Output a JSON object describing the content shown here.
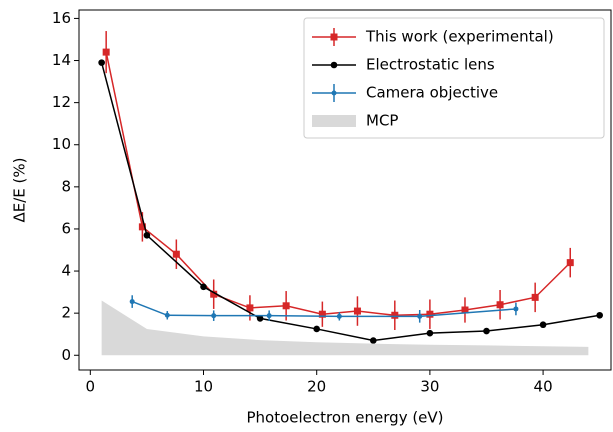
{
  "chart_data": {
    "type": "line",
    "xlabel": "Photoelectron energy (eV)",
    "ylabel": "ΔE/E (%)",
    "xlim": [
      -1,
      46
    ],
    "ylim": [
      -0.7,
      16.4
    ],
    "xticks": [
      0,
      10,
      20,
      30,
      40
    ],
    "yticks": [
      0,
      2,
      4,
      6,
      8,
      10,
      12,
      14,
      16
    ],
    "legend": "upper right",
    "series": [
      {
        "name": "This work (experimental)",
        "color": "#d62728",
        "marker": "square",
        "x": [
          1.4,
          4.6,
          7.6,
          10.9,
          14.1,
          17.3,
          20.5,
          23.6,
          26.9,
          30.0,
          33.1,
          36.2,
          39.3,
          42.4
        ],
        "values": [
          14.4,
          6.1,
          4.8,
          2.9,
          2.25,
          2.35,
          1.95,
          2.1,
          1.9,
          1.95,
          2.15,
          2.4,
          2.75,
          4.4
        ],
        "errors": [
          1.0,
          0.7,
          0.7,
          0.7,
          0.6,
          0.7,
          0.6,
          0.7,
          0.7,
          0.7,
          0.6,
          0.7,
          0.7,
          0.7
        ]
      },
      {
        "name": "Electrostatic lens",
        "color": "#000000",
        "marker": "circle",
        "x": [
          1,
          5,
          10,
          15,
          20,
          25,
          30,
          35,
          40,
          45
        ],
        "values": [
          13.9,
          5.7,
          3.25,
          1.75,
          1.25,
          0.7,
          1.05,
          1.15,
          1.45,
          1.9
        ]
      },
      {
        "name": "Camera objective",
        "color": "#1f77b4",
        "marker": "dot",
        "x": [
          3.7,
          6.8,
          10.9,
          15.8,
          22,
          29.1,
          37.6
        ],
        "values": [
          2.55,
          1.9,
          1.88,
          1.88,
          1.85,
          1.85,
          2.2
        ],
        "errors": [
          0.3,
          0.2,
          0.25,
          0.25,
          0.2,
          0.3,
          0.3
        ]
      },
      {
        "name": "MCP",
        "color": "#d9d9d9",
        "marker": "area",
        "x": [
          1,
          5,
          10,
          15,
          20,
          25,
          30,
          35,
          40,
          44
        ],
        "values": [
          2.6,
          1.25,
          0.9,
          0.72,
          0.62,
          0.55,
          0.5,
          0.47,
          0.43,
          0.4
        ]
      }
    ]
  }
}
